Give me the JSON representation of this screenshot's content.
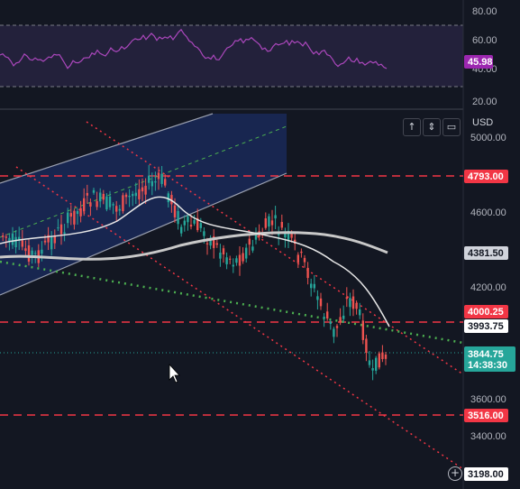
{
  "rsi_panel": {
    "value_label": "45.98",
    "value": 45.98,
    "upper_band": 70,
    "lower_band": 30,
    "axis_ticks": [
      "80.00",
      "60.00",
      "40.00",
      "20.00"
    ],
    "colors": {
      "line": "#9c27b0",
      "band_fill": "#7e57c2",
      "tag_bg": "#9c27b0"
    }
  },
  "price_axis": {
    "currency": "USD",
    "ticks": [
      "5000.00",
      "4600.00",
      "4200.00",
      "3600.00",
      "3400.00"
    ],
    "tags": {
      "resistance_high": "4793.00",
      "ma_slow": "4381.50",
      "resistance_mid": "4000.25",
      "ma_fast": "3993.75",
      "last_price": "3844.75",
      "countdown": "14:38:30",
      "support": "3516.00",
      "bottom": "3198.00"
    }
  },
  "chart_data": {
    "type": "candlestick",
    "y_range": [
      3198,
      5000
    ],
    "horizontal_levels": [
      4793.0,
      4000.25,
      3516.0
    ],
    "last_price": 3844.75,
    "moving_averages": [
      {
        "kind": "fast",
        "last": 3993.75,
        "color": "#ffffff"
      },
      {
        "kind": "slow",
        "last": 4381.5,
        "color": "#c8c8c8"
      }
    ],
    "colors": {
      "up": "#26a69a",
      "down": "#ef5350",
      "level": "#f23645",
      "trend": "#f23645",
      "green_trend": "#4caf50",
      "channel": "#2962ff"
    }
  },
  "toolbar": {
    "up_icon": "arrow-up-icon",
    "compress_icon": "compress-icon",
    "fullscreen_icon": "maximize-icon",
    "add_icon": "plus-circle-icon"
  }
}
